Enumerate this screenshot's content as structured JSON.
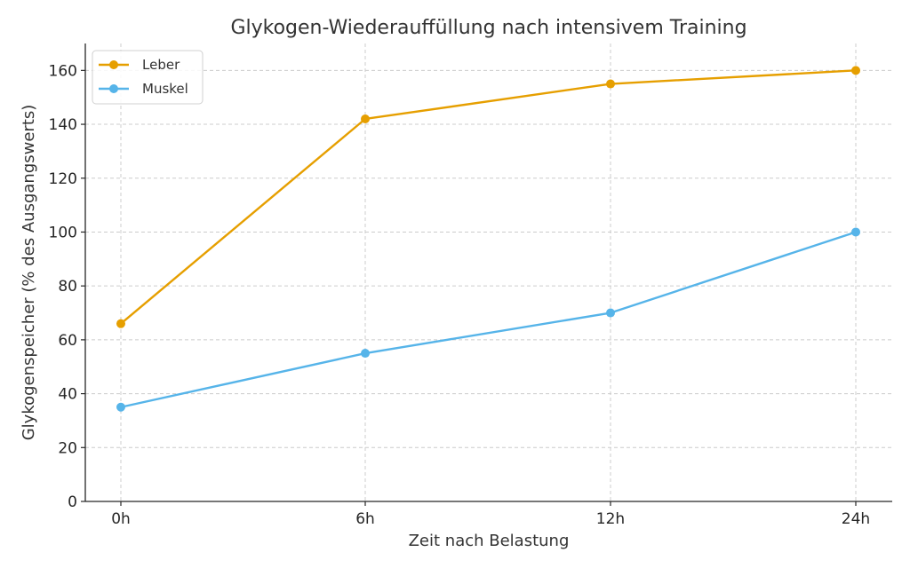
{
  "chart_data": {
    "type": "line",
    "title": "Glykogen-Wiederauffüllung nach intensivem Training",
    "xlabel": "Zeit nach Belastung",
    "ylabel": "Glykogenspeicher (% des Ausgangswerts)",
    "categories": [
      "0h",
      "6h",
      "12h",
      "24h"
    ],
    "ylim": [
      0,
      170
    ],
    "yticks": [
      0,
      20,
      40,
      60,
      80,
      100,
      120,
      140,
      160
    ],
    "grid": true,
    "legend_position": "top-left",
    "series": [
      {
        "name": "Leber",
        "color": "#E69F00",
        "values": [
          66,
          142,
          155,
          160
        ]
      },
      {
        "name": "Muskel",
        "color": "#56B4E9",
        "values": [
          35,
          55,
          70,
          100
        ]
      }
    ]
  }
}
